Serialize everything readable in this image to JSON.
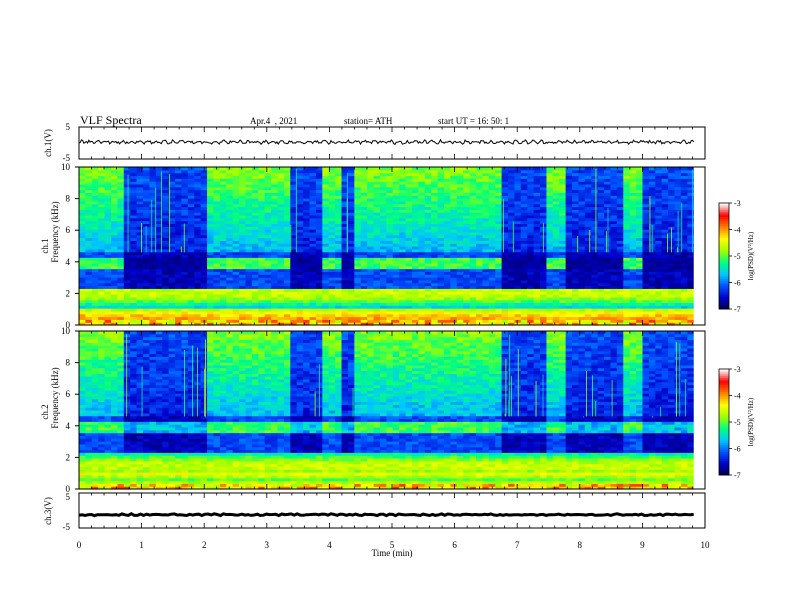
{
  "header": {
    "title": "VLF  Spectra",
    "date": "Apr.4  , 2021",
    "station": "station= ATH",
    "start": "start  UT  =   16: 50: 1"
  },
  "chart_data": {
    "type": "heatmap",
    "x_axis": {
      "label": "Time  (min)",
      "range": [
        0,
        10
      ],
      "ticks": [
        0,
        1,
        2,
        3,
        4,
        5,
        6,
        7,
        8,
        9,
        10
      ]
    },
    "panels": [
      {
        "name": "ch1-waveform",
        "type": "line",
        "ylabel": "ch.1(V)",
        "ylim": [
          -5,
          5
        ],
        "yticks": [
          5,
          -5
        ],
        "baseline": 0.3,
        "amplitude": 0.6
      },
      {
        "name": "ch1-spectrogram",
        "type": "heatmap",
        "ylabel_line1": "ch.1",
        "ylabel_line2": "Frequency  (kHz)",
        "ylim": [
          0,
          10
        ],
        "yticks": [
          0,
          2,
          4,
          6,
          8,
          10
        ],
        "colorbar": {
          "label": "log(PSD)(V²/Hz)",
          "range": [
            -7,
            -3
          ],
          "ticks": [
            -3,
            -4,
            -5,
            -6,
            -7
          ]
        }
      },
      {
        "name": "ch2-spectrogram",
        "type": "heatmap",
        "ylabel_line1": "ch.2",
        "ylabel_line2": "Frequency  (kHz)",
        "ylim": [
          0,
          10
        ],
        "yticks": [
          0,
          2,
          4,
          6,
          8,
          10
        ],
        "colorbar": {
          "label": "log(PSD)(V²/Hz)",
          "range": [
            -7,
            -3
          ],
          "ticks": [
            -3,
            -4,
            -5,
            -6,
            -7
          ]
        }
      },
      {
        "name": "ch3-waveform",
        "type": "line",
        "ylabel": "ch.3(V)",
        "ylim": [
          -5,
          5
        ],
        "yticks": [
          5,
          -5
        ],
        "baseline": -1.2,
        "amplitude": 0.25
      }
    ],
    "quiet_intervals_min": [
      [
        0.68,
        2.05
      ],
      [
        3.35,
        3.85
      ],
      [
        4.18,
        4.4
      ],
      [
        6.75,
        7.48
      ],
      [
        7.8,
        8.72
      ],
      [
        9.0,
        9.82
      ]
    ],
    "data_end_min": 9.82,
    "spectral_features_khz": {
      "broadband_noise_upper": [
        4.6,
        10
      ],
      "enhanced_band": [
        3.6,
        4.3
      ],
      "low_frequency_lines": [
        0.4,
        2.4
      ]
    },
    "colormap": [
      "#000040",
      "#0000c8",
      "#0050ff",
      "#00c8ff",
      "#00ff80",
      "#a0ff00",
      "#ffff00",
      "#ff8000",
      "#ff0000",
      "#ffffff"
    ]
  }
}
